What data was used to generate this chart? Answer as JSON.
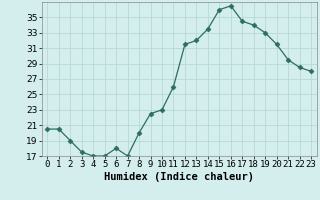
{
  "x": [
    0,
    1,
    2,
    3,
    4,
    5,
    6,
    7,
    8,
    9,
    10,
    11,
    12,
    13,
    14,
    15,
    16,
    17,
    18,
    19,
    20,
    21,
    22,
    23
  ],
  "y": [
    20.5,
    20.5,
    19.0,
    17.5,
    17.0,
    17.0,
    18.0,
    17.0,
    20.0,
    22.5,
    23.0,
    26.0,
    31.5,
    32.0,
    33.5,
    36.0,
    36.5,
    34.5,
    34.0,
    33.0,
    31.5,
    29.5,
    28.5,
    28.0
  ],
  "line_color": "#2d6e5e",
  "marker": "D",
  "marker_size": 2.5,
  "bg_color": "#d4eeee",
  "grid_color": "#b8d8d8",
  "xlabel": "Humidex (Indice chaleur)",
  "ylim": [
    17,
    37
  ],
  "xlim": [
    -0.5,
    23.5
  ],
  "yticks": [
    17,
    19,
    21,
    23,
    25,
    27,
    29,
    31,
    33,
    35
  ],
  "xtick_labels": [
    "0",
    "1",
    "2",
    "3",
    "4",
    "5",
    "6",
    "7",
    "8",
    "9",
    "10",
    "11",
    "12",
    "13",
    "14",
    "15",
    "16",
    "17",
    "18",
    "19",
    "20",
    "21",
    "22",
    "23"
  ],
  "xlabel_fontsize": 7.5,
  "tick_fontsize": 6.5
}
